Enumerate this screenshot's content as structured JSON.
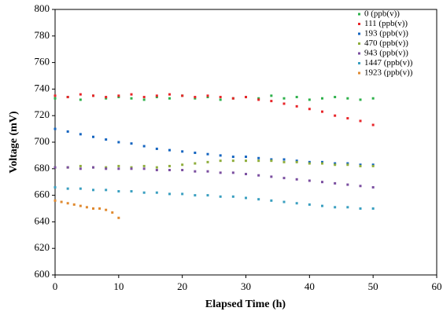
{
  "chart_data": {
    "type": "scatter",
    "x_label": "Elapsed Time (h)",
    "y_label": "Voltage (mV)",
    "xlim": [
      0,
      60
    ],
    "xticks": [
      0,
      10,
      20,
      30,
      40,
      50,
      60
    ],
    "ylim": [
      600,
      800
    ],
    "yticks": [
      600,
      620,
      640,
      660,
      680,
      700,
      720,
      740,
      760,
      780,
      800
    ],
    "legend": "upper right",
    "series": [
      {
        "name": "0 (ppb(v))",
        "color": "#2eb14b",
        "x": [
          0,
          2,
          4,
          6,
          8,
          10,
          12,
          14,
          16,
          18,
          20,
          22,
          24,
          26,
          28,
          30,
          32,
          34,
          36,
          38,
          40,
          42,
          44,
          46,
          48,
          50
        ],
        "values": [
          733,
          734,
          732,
          735,
          733,
          734,
          733,
          732,
          734,
          733,
          735,
          733,
          734,
          732,
          733,
          734,
          733,
          735,
          733,
          734,
          732,
          733,
          734,
          733,
          732,
          733
        ]
      },
      {
        "name": "111 (ppb(v))",
        "color": "#e8262a",
        "x": [
          0,
          2,
          4,
          6,
          8,
          10,
          12,
          14,
          16,
          18,
          20,
          22,
          24,
          26,
          28,
          30,
          32,
          34,
          36,
          38,
          40,
          42,
          44,
          46,
          48,
          50
        ],
        "values": [
          735,
          734,
          736,
          735,
          734,
          735,
          736,
          734,
          735,
          736,
          735,
          734,
          735,
          734,
          733,
          734,
          732,
          731,
          729,
          727,
          725,
          723,
          720,
          718,
          716,
          713
        ]
      },
      {
        "name": "193 (ppb(v))",
        "color": "#1565c0",
        "x": [
          0,
          2,
          4,
          6,
          8,
          10,
          12,
          14,
          16,
          18,
          20,
          22,
          24,
          26,
          28,
          30,
          32,
          34,
          36,
          38,
          40,
          42,
          44,
          46,
          48,
          50
        ],
        "values": [
          710,
          708,
          706,
          704,
          702,
          700,
          699,
          697,
          695,
          694,
          693,
          692,
          691,
          690,
          689,
          689,
          688,
          687,
          687,
          686,
          685,
          685,
          684,
          684,
          683,
          683
        ]
      },
      {
        "name": "470 (ppb(v))",
        "color": "#8fae3c",
        "x": [
          0,
          2,
          4,
          6,
          8,
          10,
          12,
          14,
          16,
          18,
          20,
          22,
          24,
          26,
          28,
          30,
          32,
          34,
          36,
          38,
          40,
          42,
          44,
          46,
          48,
          50
        ],
        "values": [
          681,
          681,
          682,
          681,
          681,
          682,
          681,
          682,
          681,
          682,
          683,
          684,
          685,
          686,
          686,
          686,
          686,
          686,
          685,
          685,
          684,
          684,
          683,
          683,
          682,
          682
        ]
      },
      {
        "name": "943 (ppb(v))",
        "color": "#7b4fa0",
        "x": [
          0,
          2,
          4,
          6,
          8,
          10,
          12,
          14,
          16,
          18,
          20,
          22,
          24,
          26,
          28,
          30,
          32,
          34,
          36,
          38,
          40,
          42,
          44,
          46,
          48,
          50
        ],
        "values": [
          681,
          681,
          680,
          681,
          680,
          680,
          680,
          680,
          679,
          679,
          679,
          678,
          678,
          677,
          677,
          676,
          675,
          674,
          673,
          672,
          671,
          670,
          669,
          668,
          667,
          666
        ]
      },
      {
        "name": "1447 (ppb(v))",
        "color": "#3a9fc0",
        "x": [
          0,
          2,
          4,
          6,
          8,
          10,
          12,
          14,
          16,
          18,
          20,
          22,
          24,
          26,
          28,
          30,
          32,
          34,
          36,
          38,
          40,
          42,
          44,
          46,
          48,
          50
        ],
        "values": [
          666,
          665,
          665,
          664,
          664,
          663,
          663,
          662,
          662,
          661,
          661,
          660,
          660,
          659,
          659,
          658,
          657,
          656,
          655,
          654,
          653,
          652,
          651,
          651,
          650,
          650
        ]
      },
      {
        "name": "1923 (ppb(v))",
        "color": "#e08a30",
        "x": [
          0,
          1,
          2,
          3,
          4,
          5,
          6,
          7,
          8,
          9,
          10
        ],
        "values": [
          656,
          655,
          654,
          653,
          652,
          651,
          650,
          650,
          649,
          647,
          643
        ]
      }
    ]
  }
}
